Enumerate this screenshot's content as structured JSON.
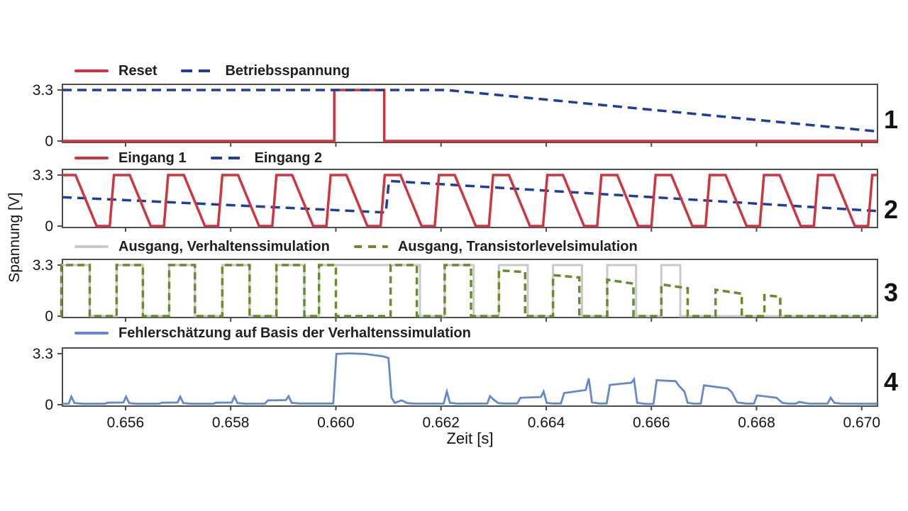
{
  "figure": {
    "xlabel": "Zeit [s]",
    "ylabel": "Spannung [V]"
  },
  "colors": {
    "red": "#d0343e",
    "dark_blue": "#1d3e9b",
    "gray": "#c9c9c9",
    "green": "#688c2b",
    "light_blue": "#6488cb",
    "axis": "#4d4d4d",
    "text": "#141414"
  },
  "axis": {
    "x_range": [
      0.6548,
      0.6703
    ],
    "x_ticks": [
      0.656,
      0.658,
      0.66,
      0.662,
      0.664,
      0.666,
      0.668,
      0.67
    ],
    "x_tick_labels": [
      "0.656",
      "0.658",
      "0.660",
      "0.662",
      "0.664",
      "0.666",
      "0.668",
      "0.670"
    ],
    "y_range": [
      0,
      3.3
    ],
    "y_tick_labels": [
      "3.3",
      "0"
    ]
  },
  "chart_data": [
    {
      "type": "line",
      "panel_number": "1",
      "legend": [
        {
          "label": "Reset",
          "color_key": "red",
          "dash": false
        },
        {
          "label": "Betriebsspannung",
          "color_key": "dark_blue",
          "dash": true,
          "dash_len": 16
        }
      ],
      "series": [
        {
          "name": "reset",
          "color_key": "red",
          "width": 3.5,
          "type": "polyline",
          "points": [
            [
              0.6548,
              0
            ],
            [
              0.65997,
              0
            ],
            [
              0.65997,
              3.3
            ],
            [
              0.66092,
              3.3
            ],
            [
              0.66092,
              0
            ],
            [
              0.6703,
              0
            ]
          ]
        },
        {
          "name": "betriebsspannung",
          "color_key": "dark_blue",
          "width": 3.5,
          "dash": "13 8",
          "type": "polyline",
          "points": [
            [
              0.6548,
              3.3
            ],
            [
              0.6621,
              3.3
            ],
            [
              0.6703,
              0.62
            ]
          ]
        }
      ]
    },
    {
      "type": "line",
      "panel_number": "2",
      "legend": [
        {
          "label": "Eingang 1",
          "color_key": "red",
          "dash": false
        },
        {
          "label": "Eingang 2",
          "color_key": "dark_blue",
          "dash": true,
          "dash_len": 16
        }
      ],
      "series": [
        {
          "name": "eingang-2",
          "color_key": "dark_blue",
          "width": 3.5,
          "dash": "13 8",
          "type": "polyline",
          "points": [
            [
              0.6548,
              1.87
            ],
            [
              0.66095,
              0.88
            ],
            [
              0.66101,
              2.92
            ],
            [
              0.6703,
              0.97
            ]
          ]
        },
        {
          "name": "eingang-1",
          "color_key": "red",
          "width": 3.5,
          "type": "polyline",
          "points": [
            [
              0.6548,
              3.3
            ],
            [
              0.65505,
              3.3
            ],
            [
              0.65545,
              0
            ],
            [
              0.6557,
              0
            ],
            [
              0.65578,
              3.3
            ],
            [
              0.65608,
              3.3
            ],
            [
              0.65648,
              0
            ],
            [
              0.65673,
              0
            ],
            [
              0.65681,
              3.3
            ],
            [
              0.65711,
              3.3
            ],
            [
              0.65751,
              0
            ],
            [
              0.65776,
              0
            ],
            [
              0.65784,
              3.3
            ],
            [
              0.65814,
              3.3
            ],
            [
              0.65854,
              0
            ],
            [
              0.65879,
              0
            ],
            [
              0.65887,
              3.3
            ],
            [
              0.65917,
              3.3
            ],
            [
              0.65957,
              0
            ],
            [
              0.65982,
              0
            ],
            [
              0.6599,
              3.3
            ],
            [
              0.6602,
              3.3
            ],
            [
              0.6606,
              0
            ],
            [
              0.66085,
              0
            ],
            [
              0.66093,
              3.3
            ],
            [
              0.66123,
              3.3
            ],
            [
              0.66163,
              0
            ],
            [
              0.66188,
              0
            ],
            [
              0.66196,
              3.3
            ],
            [
              0.66226,
              3.3
            ],
            [
              0.66266,
              0
            ],
            [
              0.66291,
              0
            ],
            [
              0.66299,
              3.3
            ],
            [
              0.66329,
              3.3
            ],
            [
              0.66369,
              0
            ],
            [
              0.66394,
              0
            ],
            [
              0.66402,
              3.3
            ],
            [
              0.66432,
              3.3
            ],
            [
              0.66472,
              0
            ],
            [
              0.66497,
              0
            ],
            [
              0.66505,
              3.3
            ],
            [
              0.66535,
              3.3
            ],
            [
              0.66575,
              0
            ],
            [
              0.666,
              0
            ],
            [
              0.66608,
              3.3
            ],
            [
              0.66638,
              3.3
            ],
            [
              0.66678,
              0
            ],
            [
              0.66703,
              0
            ],
            [
              0.66711,
              3.3
            ],
            [
              0.66741,
              3.3
            ],
            [
              0.66781,
              0
            ],
            [
              0.66806,
              0
            ],
            [
              0.66814,
              3.3
            ],
            [
              0.66844,
              3.3
            ],
            [
              0.66884,
              0
            ],
            [
              0.66909,
              0
            ],
            [
              0.66917,
              3.3
            ],
            [
              0.66947,
              3.3
            ],
            [
              0.66987,
              0
            ],
            [
              0.67012,
              0
            ],
            [
              0.6702,
              3.3
            ],
            [
              0.6703,
              3.3
            ]
          ]
        }
      ]
    },
    {
      "type": "line",
      "panel_number": "3",
      "legend": [
        {
          "label": "Ausgang, Verhaltenssimulation",
          "color_key": "gray",
          "dash": false
        },
        {
          "label": "Ausgang, Transistorlevelsimulation",
          "color_key": "green",
          "dash": true,
          "dash_len": 11
        }
      ],
      "series": [
        {
          "name": "ausgang-verhaltenssimulation",
          "color_key": "gray",
          "width": 3,
          "type": "pulses",
          "pulses": [
            [
              0.65478,
              0.65532,
              3.3,
              3.3
            ],
            [
              0.65583,
              0.65633,
              3.3,
              3.3
            ],
            [
              0.65683,
              0.65732,
              3.3,
              3.3
            ],
            [
              0.65784,
              0.65836,
              3.3,
              3.3
            ],
            [
              0.65887,
              0.6594,
              3.3,
              3.3
            ],
            [
              0.65968,
              0.6616,
              3.3,
              3.3
            ],
            [
              0.66207,
              0.66262,
              3.3,
              3.3
            ],
            [
              0.6631,
              0.66365,
              3.3,
              3.3
            ],
            [
              0.66413,
              0.66468,
              3.3,
              3.3
            ],
            [
              0.66516,
              0.66571,
              3.3,
              3.3
            ],
            [
              0.66619,
              0.66655,
              3.3,
              3.3
            ]
          ]
        },
        {
          "name": "ausgang-transistorlevelsimulation",
          "color_key": "green",
          "width": 3.5,
          "dash": "10 6",
          "type": "pulses",
          "pulses": [
            [
              0.65478,
              0.65532,
              3.3,
              3.3
            ],
            [
              0.65583,
              0.65633,
              3.3,
              3.3
            ],
            [
              0.65683,
              0.65732,
              3.3,
              3.3
            ],
            [
              0.65784,
              0.65836,
              3.3,
              3.3
            ],
            [
              0.65887,
              0.6594,
              3.3,
              3.3
            ],
            [
              0.65968,
              0.66,
              3.3,
              3.3
            ],
            [
              0.66104,
              0.66154,
              3.3,
              3.3
            ],
            [
              0.66207,
              0.66257,
              3.3,
              3.3
            ],
            [
              0.6631,
              0.6636,
              2.95,
              2.85
            ],
            [
              0.66413,
              0.66463,
              2.65,
              2.5
            ],
            [
              0.66516,
              0.66566,
              2.35,
              2.1
            ],
            [
              0.66619,
              0.66669,
              2.05,
              1.8
            ],
            [
              0.66722,
              0.66772,
              1.7,
              1.45
            ],
            [
              0.66815,
              0.66845,
              1.35,
              1.25
            ]
          ]
        }
      ]
    },
    {
      "type": "line",
      "panel_number": "4",
      "legend": [
        {
          "label": "Fehlerschätzung auf Basis der Verhaltenssimulation",
          "color_key": "light_blue",
          "dash": false
        }
      ],
      "series": [
        {
          "name": "fehlerschaetzung",
          "color_key": "light_blue",
          "width": 2.8,
          "type": "polyline",
          "points": [
            [
              0.6548,
              0.06
            ],
            [
              0.65492,
              0.07
            ],
            [
              0.65497,
              0.52
            ],
            [
              0.65503,
              0.1
            ],
            [
              0.6552,
              0.06
            ],
            [
              0.65561,
              0.06
            ],
            [
              0.65566,
              0.13
            ],
            [
              0.65596,
              0.14
            ],
            [
              0.65601,
              0.52
            ],
            [
              0.65607,
              0.1
            ],
            [
              0.6562,
              0.06
            ],
            [
              0.65664,
              0.06
            ],
            [
              0.65669,
              0.13
            ],
            [
              0.65699,
              0.14
            ],
            [
              0.65704,
              0.52
            ],
            [
              0.6571,
              0.1
            ],
            [
              0.65725,
              0.06
            ],
            [
              0.65767,
              0.06
            ],
            [
              0.65772,
              0.13
            ],
            [
              0.65802,
              0.14
            ],
            [
              0.65807,
              0.52
            ],
            [
              0.65813,
              0.1
            ],
            [
              0.6583,
              0.06
            ],
            [
              0.65865,
              0.07
            ],
            [
              0.65871,
              0.28
            ],
            [
              0.65905,
              0.3
            ],
            [
              0.6591,
              0.55
            ],
            [
              0.65916,
              0.12
            ],
            [
              0.65932,
              0.08
            ],
            [
              0.65995,
              0.08
            ],
            [
              0.66001,
              3.28
            ],
            [
              0.66025,
              3.32
            ],
            [
              0.66055,
              3.28
            ],
            [
              0.6609,
              3.12
            ],
            [
              0.661,
              3.02
            ],
            [
              0.66106,
              0.45
            ],
            [
              0.66112,
              0.12
            ],
            [
              0.66125,
              0.28
            ],
            [
              0.66136,
              0.1
            ],
            [
              0.66152,
              0.07
            ],
            [
              0.66205,
              0.07
            ],
            [
              0.66211,
              0.85
            ],
            [
              0.66217,
              0.12
            ],
            [
              0.66232,
              0.07
            ],
            [
              0.66288,
              0.08
            ],
            [
              0.66293,
              0.55
            ],
            [
              0.66301,
              0.3
            ],
            [
              0.66309,
              0.1
            ],
            [
              0.6632,
              0.08
            ],
            [
              0.66345,
              0.08
            ],
            [
              0.66351,
              0.45
            ],
            [
              0.6639,
              0.5
            ],
            [
              0.66395,
              0.85
            ],
            [
              0.66401,
              0.12
            ],
            [
              0.66413,
              0.08
            ],
            [
              0.66428,
              0.08
            ],
            [
              0.66434,
              0.75
            ],
            [
              0.66475,
              0.95
            ],
            [
              0.66481,
              1.7
            ],
            [
              0.66487,
              0.15
            ],
            [
              0.66501,
              0.08
            ],
            [
              0.66515,
              0.08
            ],
            [
              0.66521,
              1.28
            ],
            [
              0.66562,
              1.42
            ],
            [
              0.66567,
              1.65
            ],
            [
              0.66573,
              0.12
            ],
            [
              0.66589,
              0.05
            ],
            [
              0.66604,
              0.05
            ],
            [
              0.6661,
              1.58
            ],
            [
              0.66646,
              1.52
            ],
            [
              0.66653,
              1.2
            ],
            [
              0.66663,
              0.85
            ],
            [
              0.66669,
              0.12
            ],
            [
              0.66681,
              0.07
            ],
            [
              0.66694,
              0.07
            ],
            [
              0.667,
              1.25
            ],
            [
              0.66745,
              1.05
            ],
            [
              0.66753,
              0.8
            ],
            [
              0.66763,
              0.15
            ],
            [
              0.66781,
              0.07
            ],
            [
              0.66795,
              0.07
            ],
            [
              0.66801,
              0.6
            ],
            [
              0.66838,
              0.45
            ],
            [
              0.66849,
              0.12
            ],
            [
              0.66861,
              0.07
            ],
            [
              0.66875,
              0.07
            ],
            [
              0.66881,
              0.18
            ],
            [
              0.66893,
              0.1
            ],
            [
              0.66901,
              0.07
            ],
            [
              0.66935,
              0.07
            ],
            [
              0.66941,
              0.45
            ],
            [
              0.66948,
              0.12
            ],
            [
              0.66962,
              0.07
            ],
            [
              0.6703,
              0.06
            ]
          ]
        }
      ]
    }
  ]
}
